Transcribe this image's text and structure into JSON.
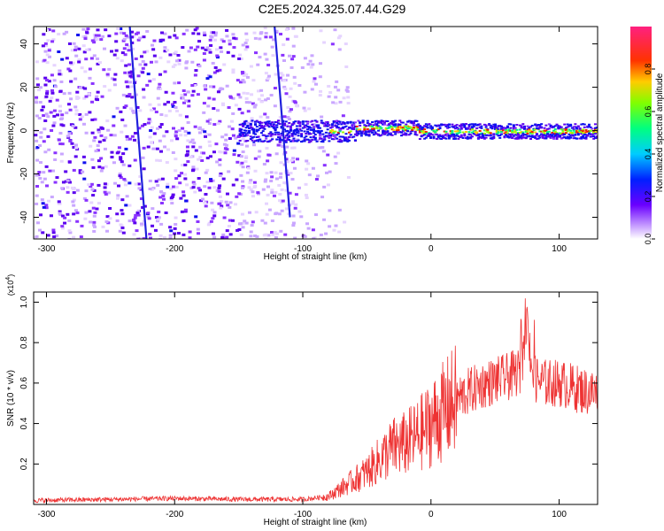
{
  "title": "C2E5.2024.325.07.44.G29",
  "chart_data": [
    {
      "type": "heatmap",
      "xlabel": "Height of straight line (km)",
      "ylabel": "Frequency (Hz)",
      "xlim": [
        -310,
        130
      ],
      "ylim": [
        -50,
        48
      ],
      "xticks": [
        -300,
        -200,
        -100,
        0,
        100
      ],
      "yticks": [
        -40,
        -20,
        0,
        20,
        40
      ],
      "colorbar": {
        "label": "Normalized spectral amplitude",
        "range": [
          0,
          1
        ],
        "ticks": [
          "0.0",
          "0.2",
          "0.4",
          "0.6",
          "0.8"
        ]
      },
      "regions": [
        {
          "description": "broadband noise",
          "x": [
            -310,
            -85
          ],
          "y": [
            -50,
            48
          ],
          "amplitude": [
            0.15,
            0.3
          ]
        },
        {
          "description": "narrow signal band near 0 Hz",
          "x": [
            -150,
            130
          ],
          "y": [
            -4,
            4
          ],
          "amplitude": [
            0.4,
            1.0
          ]
        }
      ],
      "streaks": [
        {
          "x": [
            -235,
            -222
          ],
          "y": [
            48,
            -50
          ]
        },
        {
          "x": [
            -122,
            -110
          ],
          "y": [
            48,
            -40
          ]
        }
      ]
    },
    {
      "type": "line",
      "xlabel": "Height of straight line (km)",
      "ylabel": "SNR (10 * v/v)",
      "scale_label": "(x10^4)",
      "xlim": [
        -310,
        130
      ],
      "ylim": [
        0,
        1.05
      ],
      "xticks": [
        -300,
        -200,
        -100,
        0,
        100
      ],
      "yticks": [
        0.2,
        0.4,
        0.6,
        0.8,
        1.0
      ],
      "color": "#ee3333",
      "envelope_x": [
        -310,
        -250,
        -200,
        -150,
        -100,
        -80,
        -70,
        -60,
        -50,
        -40,
        -30,
        -20,
        -10,
        0,
        10,
        20,
        30,
        40,
        50,
        60,
        70,
        75,
        80,
        90,
        100,
        110,
        120,
        130
      ],
      "envelope_y": [
        0.02,
        0.025,
        0.03,
        0.025,
        0.025,
        0.04,
        0.08,
        0.12,
        0.16,
        0.22,
        0.28,
        0.3,
        0.34,
        0.4,
        0.46,
        0.52,
        0.56,
        0.59,
        0.61,
        0.63,
        0.66,
        0.9,
        0.62,
        0.6,
        0.6,
        0.58,
        0.56,
        0.55
      ]
    }
  ]
}
